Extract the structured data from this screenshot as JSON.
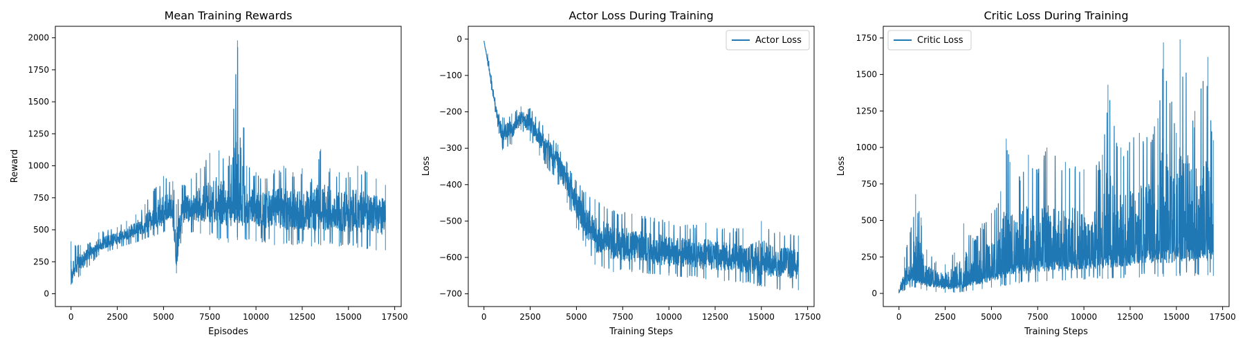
{
  "chart_data": [
    {
      "type": "line",
      "title": "Mean Training Rewards",
      "xlabel": "Episodes",
      "ylabel": "Reward",
      "xlim": [
        -850,
        17850
      ],
      "ylim": [
        -100,
        2090
      ],
      "xticks": [
        0,
        2500,
        5000,
        7500,
        10000,
        12500,
        15000,
        17500
      ],
      "yticks": [
        0,
        250,
        500,
        750,
        1000,
        1250,
        1500,
        1750,
        2000
      ],
      "grid": false,
      "legend": null,
      "color": "#1f77b4",
      "series": [
        {
          "x": [
            0,
            500,
            1000,
            1500,
            2000,
            2500,
            3000,
            3500,
            4000,
            4500,
            5000,
            5500,
            5700,
            6000,
            6500,
            7000,
            7500,
            8000,
            8500,
            9000,
            9500,
            10000,
            10500,
            11000,
            11500,
            12000,
            12500,
            13000,
            13500,
            14000,
            14500,
            15000,
            15500,
            16000,
            16500,
            17000
          ],
          "mean": [
            150,
            230,
            310,
            370,
            400,
            430,
            460,
            490,
            530,
            560,
            600,
            640,
            230,
            640,
            660,
            670,
            680,
            680,
            680,
            670,
            670,
            660,
            650,
            650,
            640,
            640,
            640,
            635,
            630,
            625,
            620,
            620,
            615,
            610,
            610,
            600
          ],
          "low": [
            70,
            140,
            220,
            300,
            330,
            350,
            380,
            400,
            430,
            450,
            480,
            520,
            160,
            470,
            480,
            470,
            460,
            420,
            400,
            420,
            420,
            410,
            400,
            380,
            390,
            380,
            390,
            370,
            380,
            390,
            370,
            380,
            360,
            350,
            340,
            340
          ],
          "high": [
            410,
            380,
            400,
            480,
            500,
            520,
            570,
            620,
            700,
            820,
            920,
            880,
            700,
            850,
            900,
            980,
            1100,
            1120,
            1000,
            1980,
            1000,
            950,
            900,
            970,
            1000,
            950,
            980,
            900,
            1130,
            980,
            950,
            950,
            1000,
            950,
            900,
            850
          ]
        }
      ]
    },
    {
      "type": "line",
      "title": "Actor Loss During Training",
      "xlabel": "Training Steps",
      "ylabel": "Loss",
      "xlim": [
        -850,
        17850
      ],
      "ylim": [
        -735,
        35
      ],
      "xticks": [
        0,
        2500,
        5000,
        7500,
        10000,
        12500,
        15000,
        17500
      ],
      "yticks": [
        0,
        -100,
        -200,
        -300,
        -400,
        -500,
        -600,
        -700
      ],
      "grid": false,
      "legend": "top-right",
      "color": "#1f77b4",
      "series": [
        {
          "name": "Actor Loss",
          "x": [
            0,
            200,
            400,
            600,
            800,
            1000,
            1500,
            2000,
            2500,
            3000,
            3500,
            4000,
            4500,
            5000,
            5500,
            6000,
            6500,
            7000,
            8000,
            9000,
            10000,
            11000,
            12000,
            13000,
            14000,
            15000,
            16000,
            17000
          ],
          "mean": [
            -5,
            -60,
            -120,
            -180,
            -230,
            -260,
            -250,
            -215,
            -235,
            -270,
            -300,
            -340,
            -390,
            -450,
            -510,
            -540,
            -555,
            -565,
            -575,
            -585,
            -590,
            -595,
            -600,
            -605,
            -610,
            -615,
            -620,
            -625
          ],
          "low": [
            -5,
            -70,
            -140,
            -200,
            -260,
            -305,
            -290,
            -250,
            -280,
            -320,
            -360,
            -400,
            -450,
            -520,
            -570,
            -620,
            -630,
            -640,
            -640,
            -645,
            -650,
            -655,
            -660,
            -665,
            -670,
            -680,
            -690,
            -690
          ],
          "high": [
            -5,
            -40,
            -100,
            -160,
            -205,
            -215,
            -205,
            -185,
            -190,
            -225,
            -260,
            -290,
            -340,
            -390,
            -420,
            -440,
            -460,
            -470,
            -480,
            -490,
            -500,
            -510,
            -505,
            -520,
            -520,
            -500,
            -530,
            -540
          ]
        }
      ]
    },
    {
      "type": "line",
      "title": "Critic Loss During Training",
      "xlabel": "Training Steps",
      "ylabel": "Loss",
      "xlim": [
        -850,
        17850
      ],
      "ylim": [
        -90,
        1830
      ],
      "xticks": [
        0,
        2500,
        5000,
        7500,
        10000,
        12500,
        15000,
        17500
      ],
      "yticks": [
        0,
        250,
        500,
        750,
        1000,
        1250,
        1500,
        1750
      ],
      "grid": false,
      "legend": "top-left",
      "color": "#1f77b4",
      "series": [
        {
          "name": "Critic Loss",
          "x": [
            0,
            300,
            600,
            900,
            1200,
            1500,
            2000,
            2500,
            3000,
            3500,
            4000,
            4500,
            5000,
            5500,
            5800,
            6000,
            6500,
            7000,
            7500,
            8000,
            9000,
            10000,
            11000,
            11300,
            12000,
            13000,
            14000,
            14300,
            15000,
            15200,
            16000,
            16700,
            17000
          ],
          "mean": [
            10,
            80,
            120,
            110,
            90,
            80,
            70,
            60,
            60,
            70,
            90,
            110,
            130,
            150,
            170,
            180,
            200,
            210,
            220,
            230,
            240,
            250,
            260,
            270,
            280,
            290,
            300,
            310,
            320,
            320,
            330,
            340,
            340
          ],
          "low": [
            0,
            20,
            40,
            40,
            30,
            20,
            10,
            5,
            5,
            10,
            20,
            30,
            40,
            50,
            55,
            60,
            70,
            75,
            80,
            85,
            90,
            95,
            100,
            100,
            105,
            110,
            115,
            115,
            120,
            120,
            120,
            125,
            120
          ],
          "high": [
            30,
            250,
            420,
            680,
            520,
            300,
            220,
            200,
            280,
            480,
            380,
            480,
            550,
            700,
            1060,
            900,
            800,
            950,
            850,
            1000,
            900,
            850,
            950,
            1430,
            1000,
            1100,
            1200,
            1720,
            1100,
            1740,
            1250,
            1620,
            1050
          ]
        }
      ]
    }
  ]
}
